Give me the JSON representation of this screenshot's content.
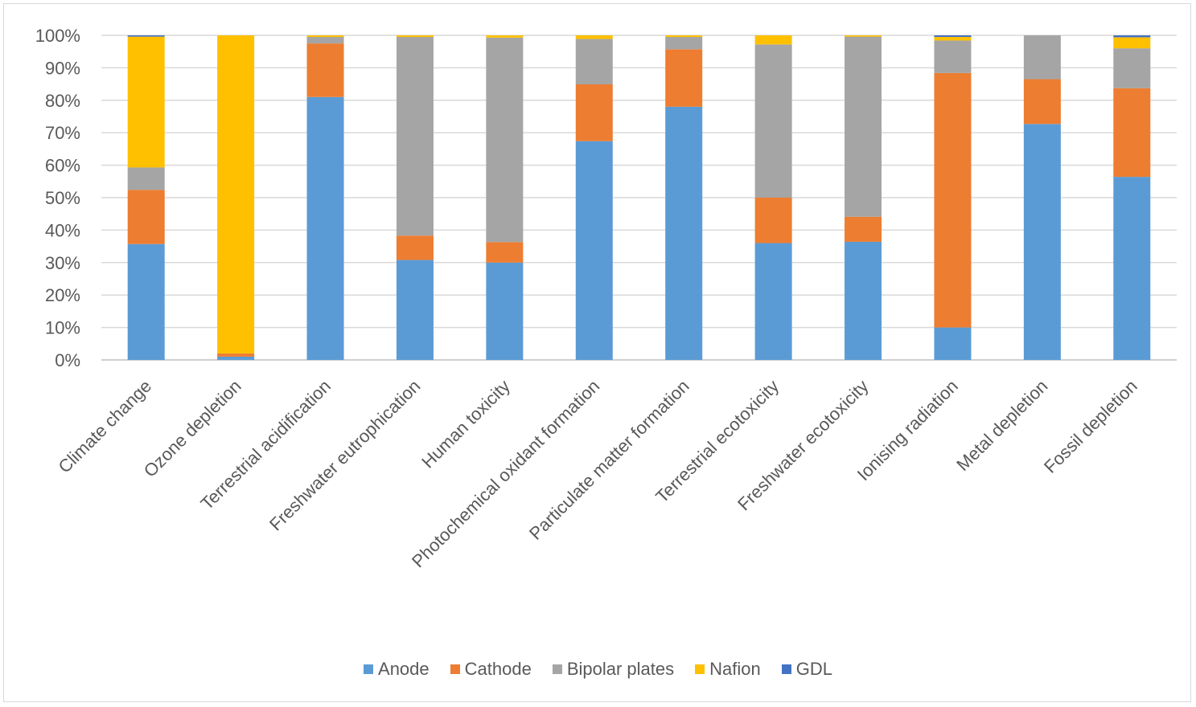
{
  "chart_data": {
    "type": "bar",
    "stacked": true,
    "percent": true,
    "categories": [
      "Climate change",
      "Ozone depletion",
      "Terrestrial acidification",
      "Freshwater eutrophication",
      "Human toxicity",
      "Photochemical oxidant formation",
      "Particulate matter formation",
      "Terrestrial ecotoxicity",
      "Freshwater ecotoxicity",
      "Ionising radiation",
      "Metal depletion",
      "Fossil depletion"
    ],
    "series": [
      {
        "name": "Anode",
        "color": "#5b9bd5",
        "values": [
          35.7,
          1.0,
          81.0,
          30.8,
          30.0,
          67.4,
          78.0,
          36.0,
          36.4,
          10.0,
          72.7,
          56.4
        ]
      },
      {
        "name": "Cathode",
        "color": "#ed7d31",
        "values": [
          16.7,
          1.0,
          16.5,
          7.5,
          6.3,
          17.5,
          17.7,
          14.0,
          7.7,
          78.4,
          13.8,
          27.3
        ]
      },
      {
        "name": "Bipolar plates",
        "color": "#a5a5a5",
        "values": [
          6.9,
          0.0,
          2.0,
          61.2,
          63.0,
          14.0,
          3.8,
          47.2,
          55.5,
          10.0,
          13.5,
          12.3
        ]
      },
      {
        "name": "Nafion",
        "color": "#ffc000",
        "values": [
          40.3,
          98.0,
          0.5,
          0.5,
          0.7,
          1.1,
          0.5,
          2.8,
          0.4,
          1.1,
          0.0,
          3.4
        ]
      },
      {
        "name": "GDL",
        "color": "#4472c4",
        "values": [
          0.4,
          0.0,
          0.0,
          0.0,
          0.0,
          0.0,
          0.0,
          0.0,
          0.0,
          0.5,
          0.0,
          0.6
        ]
      }
    ],
    "yticks": [
      "0%",
      "10%",
      "20%",
      "30%",
      "40%",
      "50%",
      "60%",
      "70%",
      "80%",
      "90%",
      "100%"
    ],
    "ylim": [
      0,
      100
    ],
    "grid": true,
    "legend_position": "bottom"
  }
}
